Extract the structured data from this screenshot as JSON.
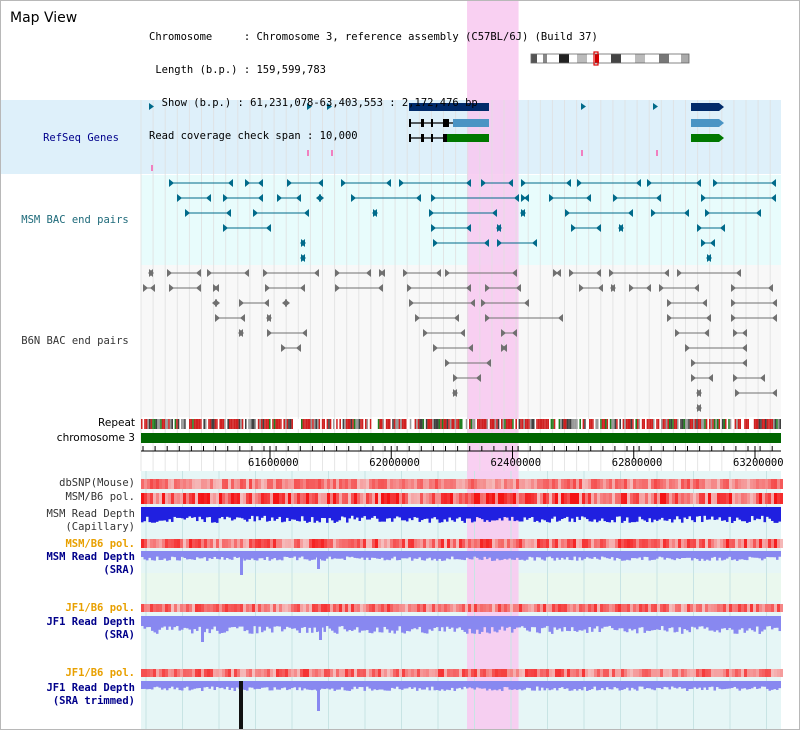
{
  "view": {
    "title": "Map View",
    "info_lines": [
      "Chromosome     : Chromosome 3, reference assembly (C57BL/6J) (Build 37)",
      " Length (b.p.) : 159,599,783",
      "  Show (b.p.) : 61,231,078-63,403,553 : 2,172,476 bp",
      "Read coverage check span : 10,000"
    ]
  },
  "tracks": {
    "refseq": "RefSeq Genes",
    "msm_bac": "MSM BAC end pairs",
    "b6n_bac": "B6N BAC end pairs",
    "repeat": "Repeat",
    "chromosome": "chromosome 3",
    "dbsnp": "dbSNP(Mouse)",
    "msm_b6_pol_1": "MSM/B6 pol.",
    "msm_depth_cap_1": "MSM Read Depth",
    "msm_depth_cap_2": "(Capillary)",
    "msm_b6_pol_2": "MSM/B6 pol.",
    "msm_depth_sra_1": "MSM Read Depth",
    "msm_depth_sra_2": "(SRA)",
    "jf1_b6_pol_1": "JF1/B6 pol.",
    "jf1_depth_sra_1": "JF1 Read Depth",
    "jf1_depth_sra_2": "(SRA)",
    "jf1_b6_pol_2": "JF1/B6 pol.",
    "jf1_depth_trim_1": "JF1 Read Depth",
    "jf1_depth_trim_2": "(SRA trimmed)"
  },
  "axis": {
    "ticks": [
      "61600000",
      "62000000",
      "62400000",
      "62800000",
      "63200000"
    ],
    "tick_values": [
      61600000,
      62000000,
      62400000,
      62800000,
      63200000
    ]
  },
  "highlight": {
    "start": 62250000,
    "end": 62420000
  },
  "colors": {
    "refseq_bg": "#def0fa",
    "msm_bg": "#e8fcfc",
    "b6n_bg": "#f8f8f8",
    "depth_bg": "#e6f6f6",
    "highlight": "#f8c8f0",
    "gene_dark": "#002a6a",
    "gene_mid": "#4a94c4",
    "gene_green": "#007800",
    "msm_feature": "#006a8a",
    "b6n_feature": "#707070",
    "chromosome_bar": "#006600",
    "depth_dark": "#2020e0",
    "depth_light": "#8888f0",
    "label_blue": "#00008b",
    "label_teal": "#1e6a7a",
    "label_orange": "#e8a000",
    "label_gray": "#333333"
  }
}
